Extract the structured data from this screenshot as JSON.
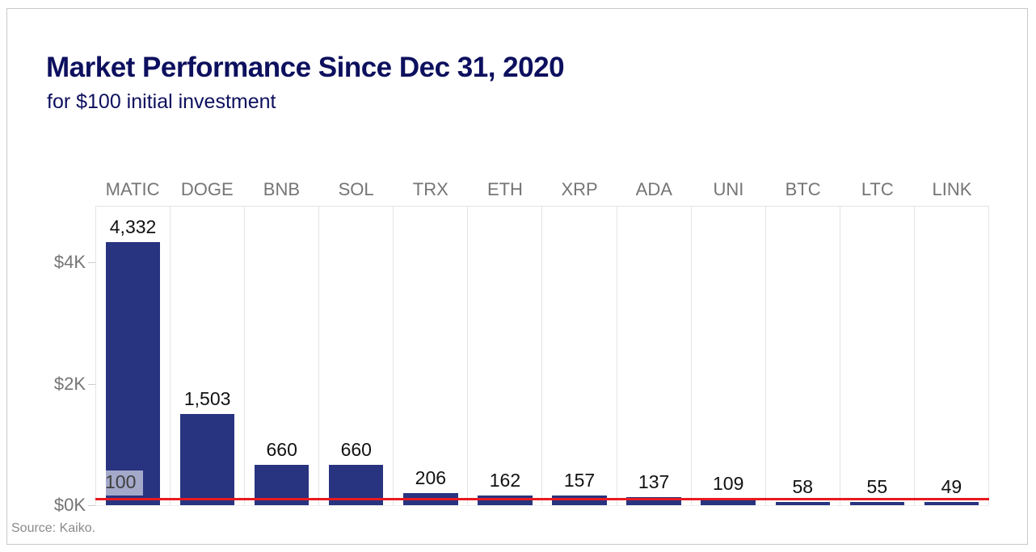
{
  "header": {
    "title": "Market Performance Since Dec 31, 2020",
    "subtitle": "for $100 initial investment"
  },
  "chart_data": {
    "type": "bar",
    "title": "Market Performance Since Dec 31, 2020",
    "subtitle": "for $100 initial investment",
    "categories": [
      "MATIC",
      "DOGE",
      "BNB",
      "SOL",
      "TRX",
      "ETH",
      "XRP",
      "ADA",
      "UNI",
      "BTC",
      "LTC",
      "LINK"
    ],
    "values": [
      4332,
      1503,
      660,
      660,
      206,
      162,
      157,
      137,
      109,
      58,
      55,
      49
    ],
    "value_labels": [
      "4,332",
      "1,503",
      "660",
      "660",
      "206",
      "162",
      "157",
      "137",
      "109",
      "58",
      "55",
      "49"
    ],
    "xlabel": "",
    "ylabel": "",
    "yticks": [
      {
        "value": 0,
        "label": "$0K"
      },
      {
        "value": 2000,
        "label": "$2K"
      },
      {
        "value": 4000,
        "label": "$4K"
      }
    ],
    "ylim": [
      0,
      4950
    ],
    "grid": "vertical-column-separators",
    "legend": "none",
    "reference_line": {
      "value": 100,
      "label": "100"
    }
  },
  "colors": {
    "bar": "#283480",
    "title_text": "#0d105e",
    "axis_text": "#757575",
    "value_label_text": "#111111",
    "reference_line": "#e8191f",
    "grid_line": "#e3e3e3"
  },
  "footer": {
    "source": "Source: Kaiko."
  }
}
